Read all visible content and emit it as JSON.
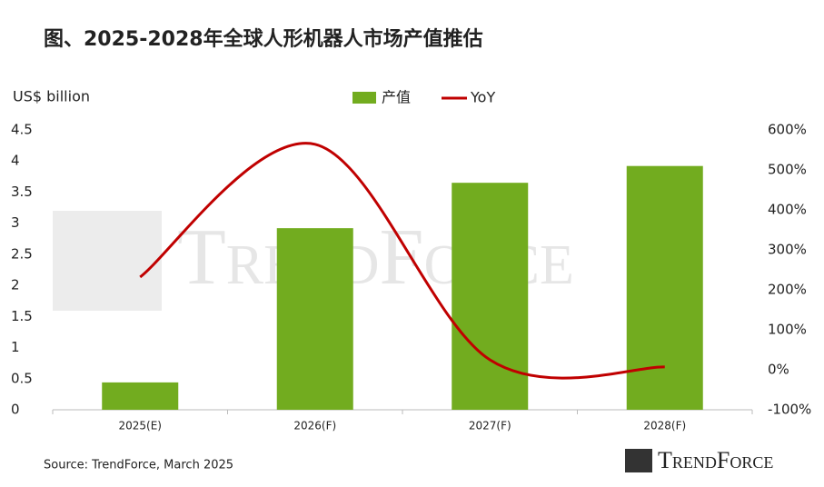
{
  "chart_data": {
    "type": "bar",
    "title": "图、2025-2028年全球人形机器人市场产值推估",
    "y_label": "US$ billion",
    "categories": [
      "2025(E)",
      "2026(F)",
      "2027(F)",
      "2028(F)"
    ],
    "series": [
      {
        "name": "产值",
        "color": "#72ac1f",
        "type": "bar",
        "values": [
          0.44,
          2.92,
          3.65,
          3.92
        ]
      },
      {
        "name": "YoY",
        "color": "#c00000",
        "type": "line",
        "axis": "y2",
        "values": [
          232,
          564,
          25,
          7
        ]
      }
    ],
    "ylim": [
      0,
      4.5
    ],
    "yticks": [
      0,
      0.5,
      1,
      1.5,
      2,
      2.5,
      3,
      3.5,
      4,
      4.5
    ],
    "y2lim": [
      -100,
      600
    ],
    "y2ticks": [
      {
        "value": -100,
        "label": "-100%"
      },
      {
        "value": 0,
        "label": "0%"
      },
      {
        "value": 100,
        "label": "100%"
      },
      {
        "value": 200,
        "label": "200%"
      },
      {
        "value": 300,
        "label": "300%"
      },
      {
        "value": 400,
        "label": "400%"
      },
      {
        "value": 500,
        "label": "500%"
      },
      {
        "value": 600,
        "label": "600%"
      }
    ],
    "grid": false,
    "legend": "top",
    "source": "Source: TrendForce, March 2025",
    "watermark": "TrendForce",
    "logo": "TrendForce"
  }
}
